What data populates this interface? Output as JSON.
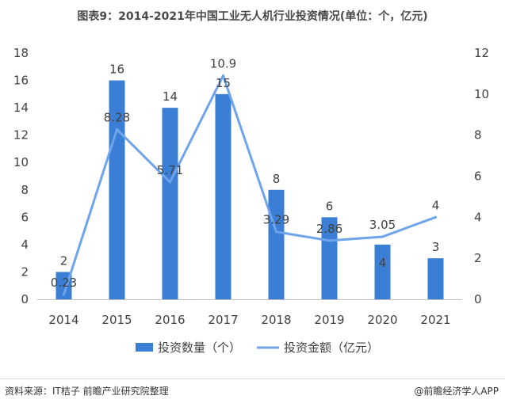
{
  "page": {
    "title": "图表9：2014-2021年中国工业无人机行业投资情况(单位：个，亿元)",
    "source": "资料来源：IT桔子 前瞻产业研究院整理",
    "brand": "@前瞻经济学人APP"
  },
  "chart_data": {
    "type": "bar",
    "categories": [
      "2014",
      "2015",
      "2016",
      "2017",
      "2018",
      "2019",
      "2020",
      "2021"
    ],
    "series": [
      {
        "name": "投资数量（个）",
        "type": "bar",
        "axis": "left",
        "color": "#3a7fd5",
        "values": [
          2,
          16,
          14,
          15,
          8,
          6,
          4,
          3
        ],
        "labels": [
          "2",
          "16",
          "14",
          "15",
          "8",
          "6",
          "4",
          "3"
        ]
      },
      {
        "name": "投资金额（亿元）",
        "type": "line",
        "axis": "right",
        "color": "#6fa3ea",
        "values": [
          0.23,
          8.28,
          5.71,
          10.9,
          3.29,
          2.86,
          3.05,
          4
        ],
        "labels": [
          "0.23",
          "8.28",
          "5.71",
          "10.9",
          "3.29",
          "2.86",
          "3.05",
          "4"
        ]
      }
    ],
    "y_left": {
      "min": 0,
      "max": 18,
      "ticks": [
        "0",
        "2",
        "4",
        "6",
        "8",
        "10",
        "12",
        "14",
        "16",
        "18"
      ]
    },
    "y_right": {
      "min": 0,
      "max": 12,
      "ticks": [
        "0",
        "2",
        "4",
        "6",
        "8",
        "10",
        "12"
      ]
    },
    "grid": false,
    "legend": "bottom"
  }
}
